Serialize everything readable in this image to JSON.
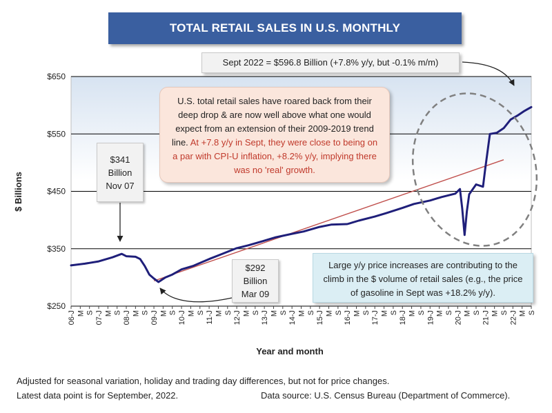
{
  "title": "TOTAL RETAIL SALES IN U.S. MONTHLY",
  "annotations": {
    "latest": "Sept 2022 = $596.8 Billion (+7.8% y/y, but -0.1% m/m)",
    "commentary_black": "U.S. total retail sales have roared back from their deep drop & are now well above what one would expect from an extension of their 2009-2019 trend line.",
    "commentary_red": "At +7.8 y/y in Sept, they were close to being on a par with CPI-U inflation, +8.2% y/y, implying there was no 'real' growth.",
    "price_note": "Large y/y price increases are contributing to the climb in the $ volume of retail sales (e.g., the price of gasoline in Sept was +18.2% y/y).",
    "high": {
      "value": "$341",
      "unit": "Billion",
      "date": "Nov 07"
    },
    "low": {
      "value": "$292",
      "unit": "Billion",
      "date": "Mar 09"
    }
  },
  "footnotes": {
    "line1": "Adjusted for seasonal variation, holiday and trading day differences, but not for price changes.",
    "line2": "Latest data point is for September, 2022.",
    "source": "Data source: U.S. Census Bureau (Department of Commerce)."
  },
  "colors": {
    "banner": "#3a5fa0",
    "series": "#1f1f7a",
    "trend": "#c0504d",
    "ellipse": "#808080",
    "commentary_red": "#c0392b"
  },
  "chart_data": {
    "type": "line",
    "title": "TOTAL RETAIL SALES IN U.S. MONTHLY",
    "xlabel": "Year and month",
    "ylabel": "$ Billions",
    "ylim": [
      250,
      650
    ],
    "yticks": [
      250,
      350,
      450,
      550,
      650
    ],
    "ytick_labels": [
      "$250",
      "$350",
      "$450",
      "$550",
      "$650"
    ],
    "x_start": "2006-01",
    "x_end": "2022-09",
    "xtick_labels": [
      "06-J",
      "M",
      "S",
      "07-J",
      "M",
      "S",
      "08-J",
      "M",
      "S",
      "09-J",
      "M",
      "S",
      "10-J",
      "M",
      "S",
      "11-J",
      "M",
      "S",
      "12-J",
      "M",
      "S",
      "13-J",
      "M",
      "S",
      "14-J",
      "M",
      "S",
      "15-J",
      "M",
      "S",
      "16-J",
      "M",
      "S",
      "17-J",
      "M",
      "S",
      "18-J",
      "M",
      "S",
      "19-J",
      "M",
      "S",
      "20-J",
      "M",
      "S",
      "21-J",
      "M",
      "S",
      "22-J",
      "M",
      "S"
    ],
    "grid": true,
    "series": [
      {
        "name": "",
        "x": [
          "2006-01",
          "2006-07",
          "2007-01",
          "2007-07",
          "2007-11",
          "2008-01",
          "2008-05",
          "2008-07",
          "2008-09",
          "2008-11",
          "2009-01",
          "2009-03",
          "2009-06",
          "2009-09",
          "2010-01",
          "2010-06",
          "2011-01",
          "2011-06",
          "2012-01",
          "2012-06",
          "2013-01",
          "2013-06",
          "2014-01",
          "2014-06",
          "2015-01",
          "2015-06",
          "2016-01",
          "2016-06",
          "2017-01",
          "2017-06",
          "2018-01",
          "2018-06",
          "2019-01",
          "2019-06",
          "2019-12",
          "2020-02",
          "2020-03",
          "2020-04",
          "2020-05",
          "2020-06",
          "2020-09",
          "2020-12",
          "2021-01",
          "2021-03",
          "2021-06",
          "2021-09",
          "2021-12",
          "2022-03",
          "2022-06",
          "2022-09"
        ],
        "values": [
          321,
          324,
          328,
          335,
          341,
          337,
          336,
          332,
          320,
          305,
          298,
          292,
          300,
          305,
          314,
          320,
          332,
          340,
          351,
          356,
          364,
          370,
          376,
          380,
          388,
          392,
          393,
          399,
          406,
          412,
          421,
          428,
          434,
          440,
          446,
          454,
          420,
          374,
          415,
          445,
          462,
          458,
          490,
          550,
          552,
          560,
          575,
          582,
          590,
          596.8
        ]
      },
      {
        "name": "",
        "style": "trend",
        "x": [
          "2009-01",
          "2021-09"
        ],
        "values": [
          294,
          505
        ]
      }
    ]
  }
}
